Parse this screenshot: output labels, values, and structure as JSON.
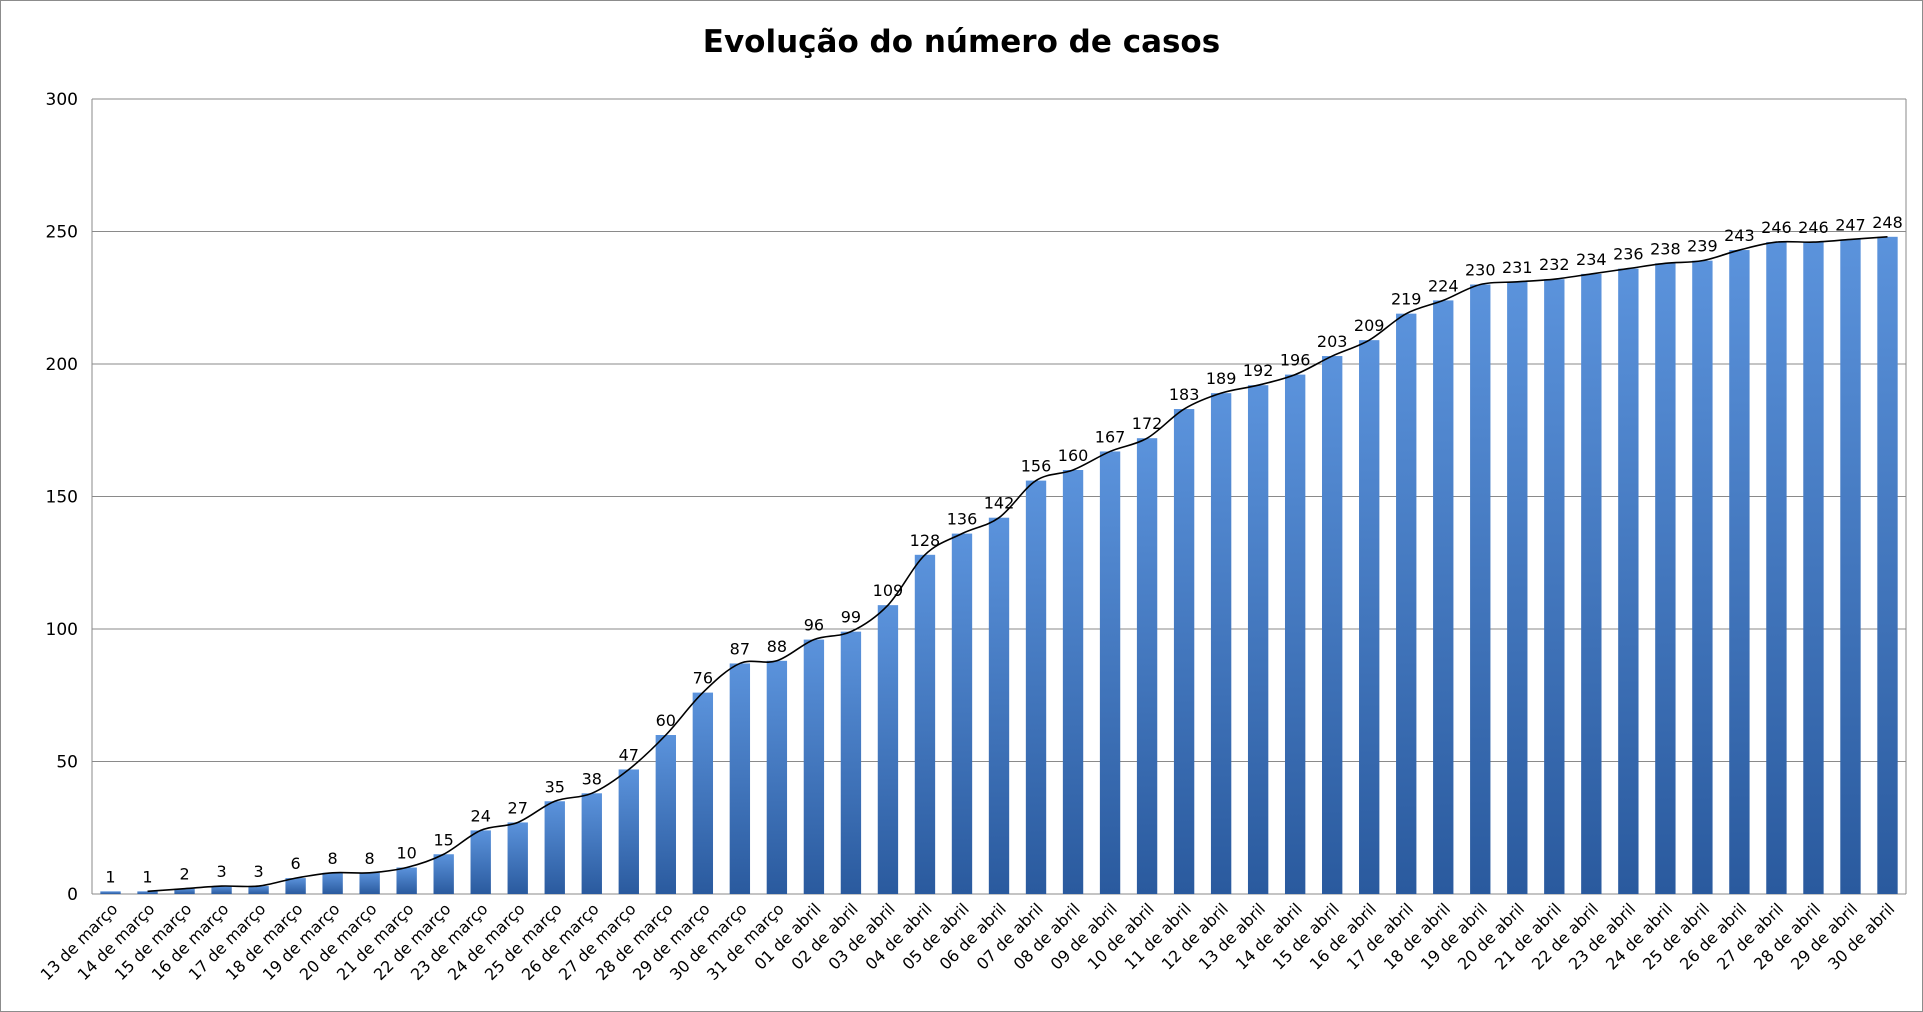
{
  "chart_data": {
    "type": "bar",
    "title": "Evolução do número de casos",
    "xlabel": "",
    "ylabel": "",
    "ylim": [
      0,
      300
    ],
    "yticks": [
      0,
      50,
      100,
      150,
      200,
      250,
      300
    ],
    "grid": true,
    "legend": "none",
    "bar_color": "#3a73c4",
    "bar_color_light": "#5b93dc",
    "bar_color_dark": "#2a5a9e",
    "trend_line_color": "#000000",
    "categories": [
      "13 de março",
      "14 de março",
      "15 de março",
      "16 de março",
      "17 de março",
      "18 de março",
      "19 de março",
      "20 de março",
      "21 de março",
      "22 de março",
      "23 de março",
      "24 de março",
      "25 de março",
      "26 de março",
      "27 de março",
      "28 de março",
      "29 de março",
      "30 de março",
      "31 de março",
      "01 de abril",
      "02 de abril",
      "03 de abril",
      "04 de abril",
      "05 de abril",
      "06 de abril",
      "07 de abril",
      "08 de abril",
      "09 de abril",
      "10 de abril",
      "11 de abril",
      "12 de abril",
      "13 de abril",
      "14 de abril",
      "15 de abril",
      "16 de abril",
      "17 de abril",
      "18 de abril",
      "19 de abril",
      "20 de abril",
      "21 de abril",
      "22 de abril",
      "23 de abril",
      "24 de abril",
      "25 de abril",
      "26 de abril",
      "27 de abril",
      "28 de abril",
      "29 de abril",
      "30 de abril"
    ],
    "values": [
      1,
      1,
      2,
      3,
      3,
      6,
      8,
      8,
      10,
      15,
      24,
      27,
      35,
      38,
      47,
      60,
      76,
      87,
      88,
      96,
      99,
      109,
      128,
      136,
      142,
      156,
      160,
      167,
      172,
      183,
      189,
      192,
      196,
      203,
      209,
      219,
      224,
      230,
      231,
      232,
      234,
      236,
      238,
      239,
      243,
      246,
      246,
      247,
      248
    ]
  }
}
